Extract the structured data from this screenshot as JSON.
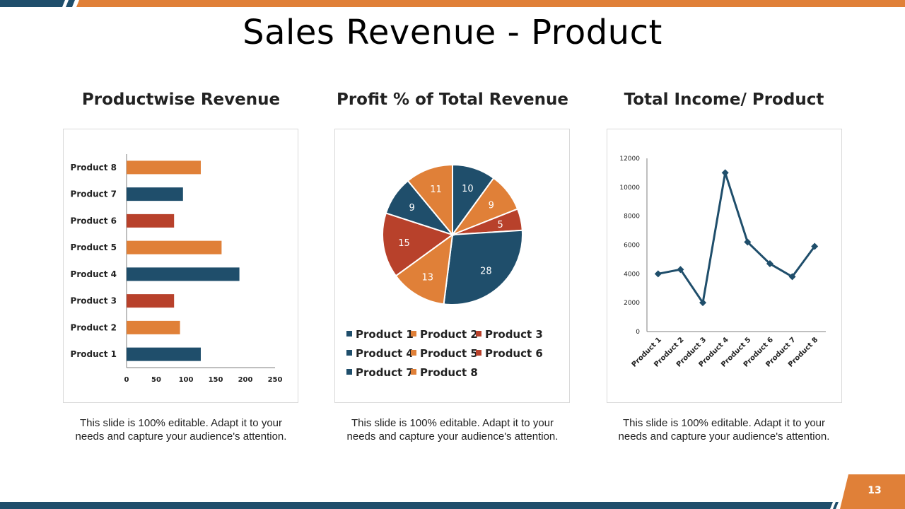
{
  "slide": {
    "title": "Sales Revenue - Product",
    "page_number": "13",
    "caption": "This slide is 100% editable. Adapt it to your needs and capture your audience's attention."
  },
  "colors": {
    "blue": "#1f4e6b",
    "orange": "#e08038",
    "red": "#b8412b",
    "gray_axis": "#7f7f7f"
  },
  "chart_data": [
    {
      "type": "bar",
      "title": "Productwise Revenue",
      "orientation": "horizontal",
      "categories": [
        "Product 1",
        "Product 2",
        "Product 3",
        "Product 4",
        "Product 5",
        "Product 6",
        "Product 7",
        "Product 8"
      ],
      "values": [
        125,
        90,
        80,
        190,
        160,
        80,
        95,
        125
      ],
      "bar_colors": [
        "blue",
        "orange",
        "red",
        "blue",
        "orange",
        "red",
        "blue",
        "orange"
      ],
      "xlim": [
        0,
        250
      ],
      "xticks": [
        0,
        50,
        100,
        150,
        200,
        250
      ],
      "grid": false
    },
    {
      "type": "pie",
      "title": "Profit % of Total Revenue",
      "categories": [
        "Product 1",
        "Product 2",
        "Product 3",
        "Product 4",
        "Product 5",
        "Product 6",
        "Product 7",
        "Product 8"
      ],
      "values": [
        10,
        9,
        5,
        28,
        13,
        15,
        9,
        11
      ],
      "slice_colors": [
        "blue",
        "orange",
        "red",
        "blue",
        "orange",
        "red",
        "blue",
        "orange"
      ],
      "legend_placement": "bottom"
    },
    {
      "type": "line",
      "title": "Total Income/ Product",
      "categories": [
        "Product 1",
        "Product 2",
        "Product 3",
        "Product 4",
        "Product 5",
        "Product 6",
        "Product 7",
        "Product 8"
      ],
      "values": [
        4000,
        4300,
        2000,
        11000,
        6200,
        4700,
        3800,
        5900
      ],
      "ylim": [
        0,
        12000
      ],
      "yticks": [
        0,
        2000,
        4000,
        6000,
        8000,
        10000,
        12000
      ],
      "marker": "diamond",
      "grid": false
    }
  ]
}
